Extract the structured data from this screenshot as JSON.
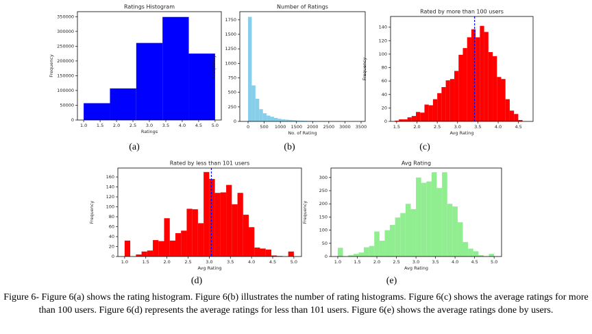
{
  "chart_data": [
    {
      "type": "histogram",
      "title": "Ratings Histogram",
      "xlabel": "Ratings",
      "ylabel": "Frequency",
      "panel_label": "(a)",
      "color": "#0000ff",
      "bins": [
        1.0,
        1.8,
        2.6,
        3.4,
        4.2,
        5.0
      ],
      "values": [
        57000,
        107000,
        261000,
        349000,
        225000
      ],
      "xlim": [
        0.81,
        5.19
      ],
      "ylim": [
        0,
        367000
      ],
      "xticks": [
        {
          "value": 1,
          "label": "1.0"
        },
        {
          "value": 1.5,
          "label": "1.5"
        },
        {
          "value": 2,
          "label": "2.0"
        },
        {
          "value": 2.5,
          "label": "2.5"
        },
        {
          "value": 3,
          "label": "3.0"
        },
        {
          "value": 3.5,
          "label": "3.5"
        },
        {
          "value": 4,
          "label": "4.0"
        },
        {
          "value": 4.5,
          "label": "4.5"
        },
        {
          "value": 5,
          "label": "5.0"
        }
      ],
      "yticks": [
        0,
        50000,
        100000,
        150000,
        200000,
        250000,
        300000,
        350000
      ],
      "grid": false
    },
    {
      "type": "histogram",
      "title": "Number of Ratings",
      "xlabel": "No. of Rating",
      "ylabel": "Frequency",
      "panel_label": "(b)",
      "color": "#87ceeb",
      "bins": [
        0,
        115,
        230,
        345,
        460,
        575,
        690,
        805,
        920,
        1035,
        1150,
        1265,
        1380,
        1495,
        1610,
        1725,
        1840,
        1955,
        2070,
        2185,
        2300,
        2415,
        2530,
        2645,
        2760,
        2875,
        2990,
        3105,
        3220,
        3335,
        3450
      ],
      "values": [
        1800,
        620,
        390,
        210,
        140,
        100,
        80,
        60,
        45,
        35,
        30,
        25,
        20,
        15,
        12,
        10,
        8,
        7,
        6,
        5,
        4,
        3,
        3,
        2,
        2,
        1,
        1,
        1,
        1,
        1
      ],
      "xlim": [
        -255,
        3627
      ],
      "ylim": [
        0,
        1890
      ],
      "xticks": [
        0,
        500,
        1000,
        1500,
        2000,
        2500,
        3000,
        3500
      ],
      "yticks": [
        0,
        250,
        500,
        750,
        1000,
        1250,
        1500,
        1750
      ],
      "grid": false
    },
    {
      "type": "histogram",
      "title": "Rated by more than 100 users",
      "xlabel": "Avg Rating",
      "ylabel": "Frequency",
      "panel_label": "(c)",
      "color": "#ff0000",
      "bins": [
        1.45,
        1.555,
        1.66,
        1.765,
        1.87,
        1.975,
        2.08,
        2.185,
        2.29,
        2.395,
        2.5,
        2.605,
        2.71,
        2.815,
        2.92,
        3.025,
        3.13,
        3.235,
        3.34,
        3.445,
        3.55,
        3.655,
        3.76,
        3.865,
        3.97,
        4.075,
        4.18,
        4.285,
        4.39,
        4.495,
        4.6
      ],
      "values": [
        1,
        3,
        3,
        6,
        8,
        14,
        13,
        25,
        24,
        33,
        42,
        51,
        61,
        63,
        75,
        99,
        109,
        125,
        137,
        125,
        142,
        133,
        103,
        97,
        66,
        63,
        33,
        16,
        11,
        2
      ],
      "vline": {
        "value": 3.42,
        "color": "#0000ff"
      },
      "xlim": [
        1.35,
        4.86
      ],
      "ylim": [
        0,
        156
      ],
      "xticks": [
        {
          "value": 1.5,
          "label": "1.5"
        },
        {
          "value": 2,
          "label": "2.0"
        },
        {
          "value": 2.5,
          "label": "2.5"
        },
        {
          "value": 3,
          "label": "3.0"
        },
        {
          "value": 3.5,
          "label": "3.5"
        },
        {
          "value": 4,
          "label": "4.0"
        },
        {
          "value": 4.5,
          "label": "4.5"
        }
      ],
      "yticks": [
        0,
        20,
        40,
        60,
        80,
        100,
        120,
        140
      ],
      "grid": false
    },
    {
      "type": "histogram",
      "title": "Rated by less than 101 users",
      "xlabel": "Avg Rating",
      "ylabel": "Frequency",
      "panel_label": "(d)",
      "color": "#ff0000",
      "bins": [
        1.0,
        1.133,
        1.267,
        1.4,
        1.533,
        1.667,
        1.8,
        1.933,
        2.067,
        2.2,
        2.333,
        2.467,
        2.6,
        2.733,
        2.867,
        3.0,
        3.133,
        3.267,
        3.4,
        3.533,
        3.667,
        3.8,
        3.933,
        4.067,
        4.2,
        4.333,
        4.467,
        4.6,
        4.733,
        4.867,
        5.0
      ],
      "values": [
        32,
        0,
        4,
        10,
        12,
        33,
        31,
        77,
        32,
        47,
        52,
        96,
        95,
        67,
        170,
        156,
        128,
        129,
        144,
        105,
        128,
        84,
        59,
        18,
        16,
        14,
        2,
        1,
        0,
        10
      ],
      "vline": {
        "value": 3.05,
        "color": "#0000ff"
      },
      "xlim": [
        0.84,
        5.18
      ],
      "ylim": [
        0,
        178
      ],
      "xticks": [
        {
          "value": 1,
          "label": "1.0"
        },
        {
          "value": 1.5,
          "label": "1.5"
        },
        {
          "value": 2,
          "label": "2.0"
        },
        {
          "value": 2.5,
          "label": "2.5"
        },
        {
          "value": 3,
          "label": "3.0"
        },
        {
          "value": 3.5,
          "label": "3.5"
        },
        {
          "value": 4,
          "label": "4.0"
        },
        {
          "value": 4.5,
          "label": "4.5"
        },
        {
          "value": 5,
          "label": "5.0"
        }
      ],
      "yticks": [
        0,
        20,
        40,
        60,
        80,
        100,
        120,
        140,
        160
      ],
      "grid": false
    },
    {
      "type": "histogram",
      "title": "Avg Rating",
      "xlabel": "Avg Rating",
      "ylabel": "Frequency",
      "panel_label": "(e)",
      "color": "#90ee90",
      "bins": [
        1.0,
        1.133,
        1.267,
        1.4,
        1.533,
        1.667,
        1.8,
        1.933,
        2.067,
        2.2,
        2.333,
        2.467,
        2.6,
        2.733,
        2.867,
        3.0,
        3.133,
        3.267,
        3.4,
        3.533,
        3.667,
        3.8,
        3.933,
        4.067,
        4.2,
        4.333,
        4.467,
        4.6,
        4.733,
        4.867,
        5.0
      ],
      "values": [
        33,
        0,
        5,
        10,
        15,
        35,
        40,
        95,
        60,
        100,
        120,
        148,
        165,
        200,
        180,
        300,
        280,
        285,
        320,
        260,
        320,
        200,
        190,
        130,
        55,
        30,
        20,
        5,
        0,
        10
      ],
      "xlim": [
        0.825,
        5.19
      ],
      "ylim": [
        0,
        336
      ],
      "xticks": [
        {
          "value": 1,
          "label": "1.0"
        },
        {
          "value": 1.5,
          "label": "1.5"
        },
        {
          "value": 2,
          "label": "2.0"
        },
        {
          "value": 2.5,
          "label": "2.5"
        },
        {
          "value": 3,
          "label": "3.0"
        },
        {
          "value": 3.5,
          "label": "3.5"
        },
        {
          "value": 4,
          "label": "4.0"
        },
        {
          "value": 4.5,
          "label": "4.5"
        },
        {
          "value": 5,
          "label": "5.0"
        }
      ],
      "yticks": [
        0,
        50,
        100,
        150,
        200,
        250,
        300
      ],
      "grid": false
    }
  ],
  "caption": "Figure 6- Figure 6(a) shows the rating histogram. Figure 6(b) illustrates the number of rating histograms. Figure 6(c) shows the average ratings for more than 100 users. Figure 6(d) represents the average ratings for less than 101 users. Figure 6(e) shows the average ratings done by users."
}
